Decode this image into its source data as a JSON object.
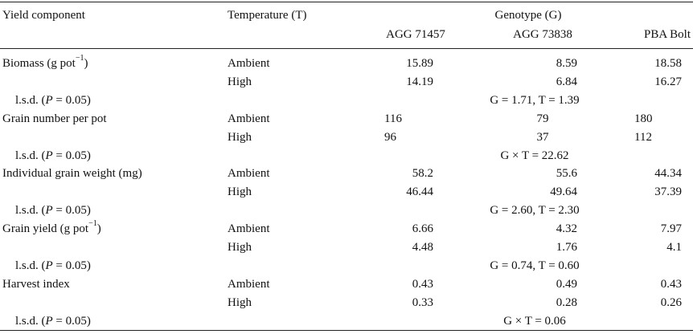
{
  "header": {
    "col_component": "Yield component",
    "col_temperature": "Temperature (T)",
    "col_genotype": "Genotype (G)",
    "genotypes": [
      "AGG 71457",
      "AGG 73838",
      "PBA Bolt"
    ]
  },
  "rows": [
    {
      "component": "Biomass (g pot",
      "component_sup": "−1",
      "component_after": ")",
      "ambient": [
        "15.89",
        "8.59",
        "18.58"
      ],
      "high": [
        "14.19",
        "6.84",
        "16.27"
      ],
      "lsd_label": "l.s.d. (",
      "lsd_p": "P",
      "lsd_eq": " = 0.05)",
      "lsd_value": "G = 1.71, T = 1.39"
    },
    {
      "component": "Grain number per pot",
      "component_sup": "",
      "component_after": "",
      "ambient": [
        "116",
        "79",
        "180"
      ],
      "high": [
        "96",
        "37",
        "112"
      ],
      "lsd_label": "l.s.d. (",
      "lsd_p": "P",
      "lsd_eq": " = 0.05)",
      "lsd_value": "G × T = 22.62"
    },
    {
      "component": "Individual grain weight (mg)",
      "component_sup": "",
      "component_after": "",
      "ambient": [
        "58.2",
        "55.6",
        "44.34"
      ],
      "high": [
        "46.44",
        "49.64",
        "37.39"
      ],
      "lsd_label": "l.s.d. (",
      "lsd_p": "P",
      "lsd_eq": " = 0.05)",
      "lsd_value": "G = 2.60, T = 2.30"
    },
    {
      "component": "Grain yield (g pot",
      "component_sup": "−1",
      "component_after": ")",
      "ambient": [
        "6.66",
        "4.32",
        "7.97"
      ],
      "high": [
        "4.48",
        "1.76",
        "4.1"
      ],
      "lsd_label": "l.s.d. (",
      "lsd_p": "P",
      "lsd_eq": " = 0.05)",
      "lsd_value": "G = 0.74, T = 0.60"
    },
    {
      "component": "Harvest index",
      "component_sup": "",
      "component_after": "",
      "ambient": [
        "0.43",
        "0.49",
        "0.43"
      ],
      "high": [
        "0.33",
        "0.28",
        "0.26"
      ],
      "lsd_label": "l.s.d. (",
      "lsd_p": "P",
      "lsd_eq": " = 0.05)",
      "lsd_value": "G × T = 0.06"
    }
  ],
  "temp_ambient": "Ambient",
  "temp_high": "High"
}
